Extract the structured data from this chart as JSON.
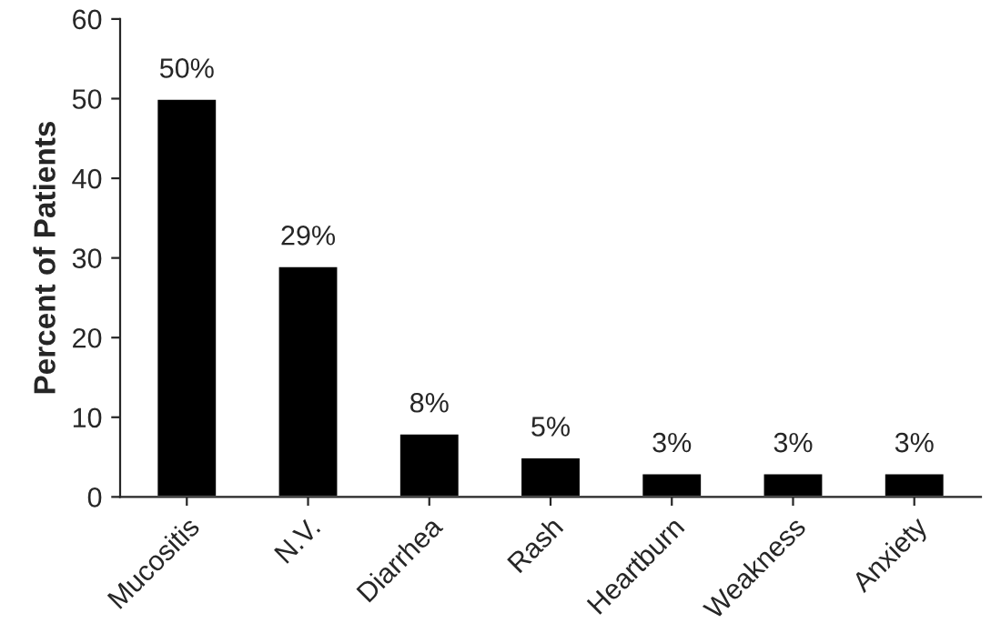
{
  "chart_data": {
    "type": "bar",
    "ylabel": "Percent of Patients",
    "categories": [
      "Mucositis",
      "N.V.",
      "Diarrhea",
      "Rash",
      "Heartburn",
      "Weakness",
      "Anxiety"
    ],
    "values": [
      50,
      29,
      8,
      5,
      3,
      3,
      3
    ],
    "value_labels": [
      "50%",
      "29%",
      "8%",
      "5%",
      "3%",
      "3%",
      "3%"
    ],
    "color": "#000000",
    "ylim": [
      0,
      60
    ],
    "yticks": [
      0,
      10,
      20,
      30,
      40,
      50,
      60
    ],
    "grid": false
  }
}
